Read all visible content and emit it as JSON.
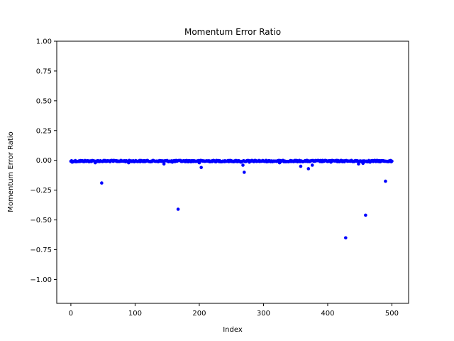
{
  "chart_data": {
    "type": "scatter",
    "title": "Momentum Error Ratio",
    "xlabel": "Index",
    "ylabel": "Momentum Error Ratio",
    "xlim": [
      -22,
      526
    ],
    "ylim": [
      -1.2,
      1.0
    ],
    "xticks": [
      {
        "value": 0,
        "label": "0"
      },
      {
        "value": 100,
        "label": "100"
      },
      {
        "value": 200,
        "label": "200"
      },
      {
        "value": 300,
        "label": "300"
      },
      {
        "value": 400,
        "label": "400"
      },
      {
        "value": 500,
        "label": "500"
      }
    ],
    "yticks": [
      {
        "value": 1.0,
        "label": "1.00"
      },
      {
        "value": 0.75,
        "label": "0.75"
      },
      {
        "value": 0.5,
        "label": "0.50"
      },
      {
        "value": 0.25,
        "label": "0.25"
      },
      {
        "value": 0.0,
        "label": "0.00"
      },
      {
        "value": -0.25,
        "label": "−0.25"
      },
      {
        "value": -0.5,
        "label": "−0.50"
      },
      {
        "value": -0.75,
        "label": "−0.75"
      },
      {
        "value": -1.0,
        "label": "−1.00"
      }
    ],
    "grid": false,
    "marker_color": "#0000ff",
    "n_points": 501,
    "outliers": [
      {
        "x": 2,
        "y": -0.015
      },
      {
        "x": 8,
        "y": -0.012
      },
      {
        "x": 38,
        "y": -0.02
      },
      {
        "x": 48,
        "y": -0.19
      },
      {
        "x": 90,
        "y": -0.02
      },
      {
        "x": 145,
        "y": -0.03
      },
      {
        "x": 158,
        "y": -0.015
      },
      {
        "x": 167,
        "y": -0.41
      },
      {
        "x": 200,
        "y": -0.02
      },
      {
        "x": 203,
        "y": -0.06
      },
      {
        "x": 265,
        "y": -0.015
      },
      {
        "x": 268,
        "y": -0.04
      },
      {
        "x": 270,
        "y": -0.1
      },
      {
        "x": 278,
        "y": -0.015
      },
      {
        "x": 325,
        "y": -0.02
      },
      {
        "x": 358,
        "y": -0.05
      },
      {
        "x": 370,
        "y": -0.07
      },
      {
        "x": 376,
        "y": -0.04
      },
      {
        "x": 405,
        "y": -0.015
      },
      {
        "x": 428,
        "y": -0.65
      },
      {
        "x": 448,
        "y": -0.03
      },
      {
        "x": 455,
        "y": -0.025
      },
      {
        "x": 459,
        "y": -0.46
      },
      {
        "x": 466,
        "y": -0.015
      },
      {
        "x": 490,
        "y": -0.175
      },
      {
        "x": 499,
        "y": -0.012
      }
    ]
  }
}
